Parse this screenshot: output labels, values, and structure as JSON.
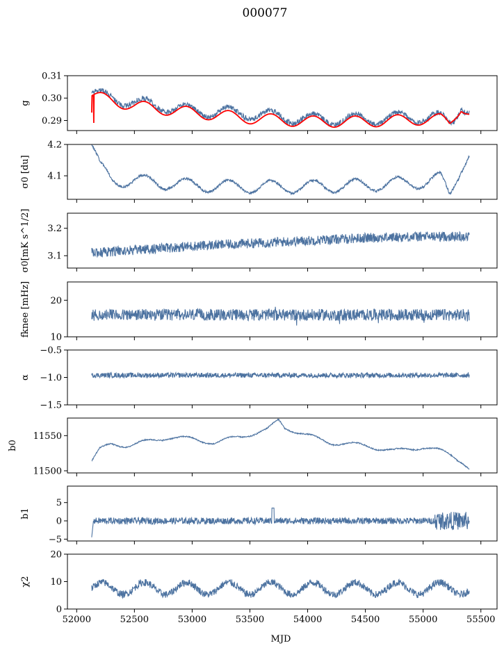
{
  "figure": {
    "title": "000077",
    "xlabel": "MJD",
    "colors": {
      "series": "#4c72a0",
      "fit": "#ff0000",
      "axis": "#000000",
      "background": "#ffffff"
    }
  },
  "chart_data": [
    {
      "type": "line",
      "panel": "g",
      "ylabel": "g",
      "xlim": [
        51920,
        55640
      ],
      "ylim": [
        0.2855,
        0.31
      ],
      "yticks": [
        0.29,
        0.3,
        0.31
      ],
      "ytick_labels": [
        "0.29",
        "0.30",
        "0.31"
      ],
      "series": [
        {
          "color": "#4c72a0",
          "shape": "g_data"
        },
        {
          "color": "#ff0000",
          "shape": "g_fit"
        }
      ]
    },
    {
      "type": "line",
      "panel": "sigma0_du",
      "ylabel": "σ0 [du]",
      "xlim": [
        51920,
        55640
      ],
      "ylim": [
        4.025,
        4.2
      ],
      "yticks": [
        4.1,
        4.2
      ],
      "ytick_labels": [
        "4.1",
        "4.2"
      ],
      "series": [
        {
          "color": "#4c72a0",
          "shape": "sigma_du"
        }
      ]
    },
    {
      "type": "line",
      "panel": "sigma0_mk",
      "ylabel": "σ0[mK s^1/2]",
      "xlim": [
        51920,
        55640
      ],
      "ylim": [
        3.055,
        3.255
      ],
      "yticks": [
        3.1,
        3.2
      ],
      "ytick_labels": [
        "3.1",
        "3.2"
      ],
      "series": [
        {
          "color": "#4c72a0",
          "shape": "sigma_mk"
        }
      ]
    },
    {
      "type": "line",
      "panel": "fknee",
      "ylabel": "fknee [mHz]",
      "xlim": [
        51920,
        55640
      ],
      "ylim": [
        10,
        25
      ],
      "yticks": [
        10,
        20
      ],
      "ytick_labels": [
        "10",
        "20"
      ],
      "series": [
        {
          "color": "#4c72a0",
          "shape": "fknee"
        }
      ]
    },
    {
      "type": "line",
      "panel": "alpha",
      "ylabel": "α",
      "xlim": [
        51920,
        55640
      ],
      "ylim": [
        -1.5,
        -0.5
      ],
      "yticks": [
        -1.5,
        -1.0,
        -0.5
      ],
      "ytick_labels": [
        "−1.5",
        "−1.0",
        "−0.5"
      ],
      "series": [
        {
          "color": "#4c72a0",
          "shape": "alpha"
        }
      ]
    },
    {
      "type": "line",
      "panel": "b0",
      "ylabel": "b0",
      "xlim": [
        51920,
        55640
      ],
      "ylim": [
        11497,
        11575
      ],
      "yticks": [
        11500,
        11550
      ],
      "ytick_labels": [
        "11500",
        "11550"
      ],
      "series": [
        {
          "color": "#4c72a0",
          "shape": "b0"
        }
      ]
    },
    {
      "type": "line",
      "panel": "b1",
      "ylabel": "b1",
      "xlim": [
        51920,
        55640
      ],
      "ylim": [
        -5.5,
        9.5
      ],
      "yticks": [
        -5,
        0,
        5
      ],
      "ytick_labels": [
        "−5",
        "0",
        "5"
      ],
      "series": [
        {
          "color": "#4c72a0",
          "shape": "b1"
        }
      ]
    },
    {
      "type": "line",
      "panel": "chi2",
      "ylabel": "χ2",
      "xlim": [
        51920,
        55640
      ],
      "ylim": [
        0,
        20
      ],
      "yticks": [
        0,
        10,
        20
      ],
      "ytick_labels": [
        "0",
        "10",
        "20"
      ],
      "xticks": [
        52000,
        52500,
        53000,
        53500,
        54000,
        54500,
        55000,
        55500
      ],
      "xtick_labels": [
        "52000",
        "52500",
        "53000",
        "53500",
        "54000",
        "54500",
        "55000",
        "55500"
      ],
      "series": [
        {
          "color": "#4c72a0",
          "shape": "chi2"
        }
      ]
    }
  ]
}
